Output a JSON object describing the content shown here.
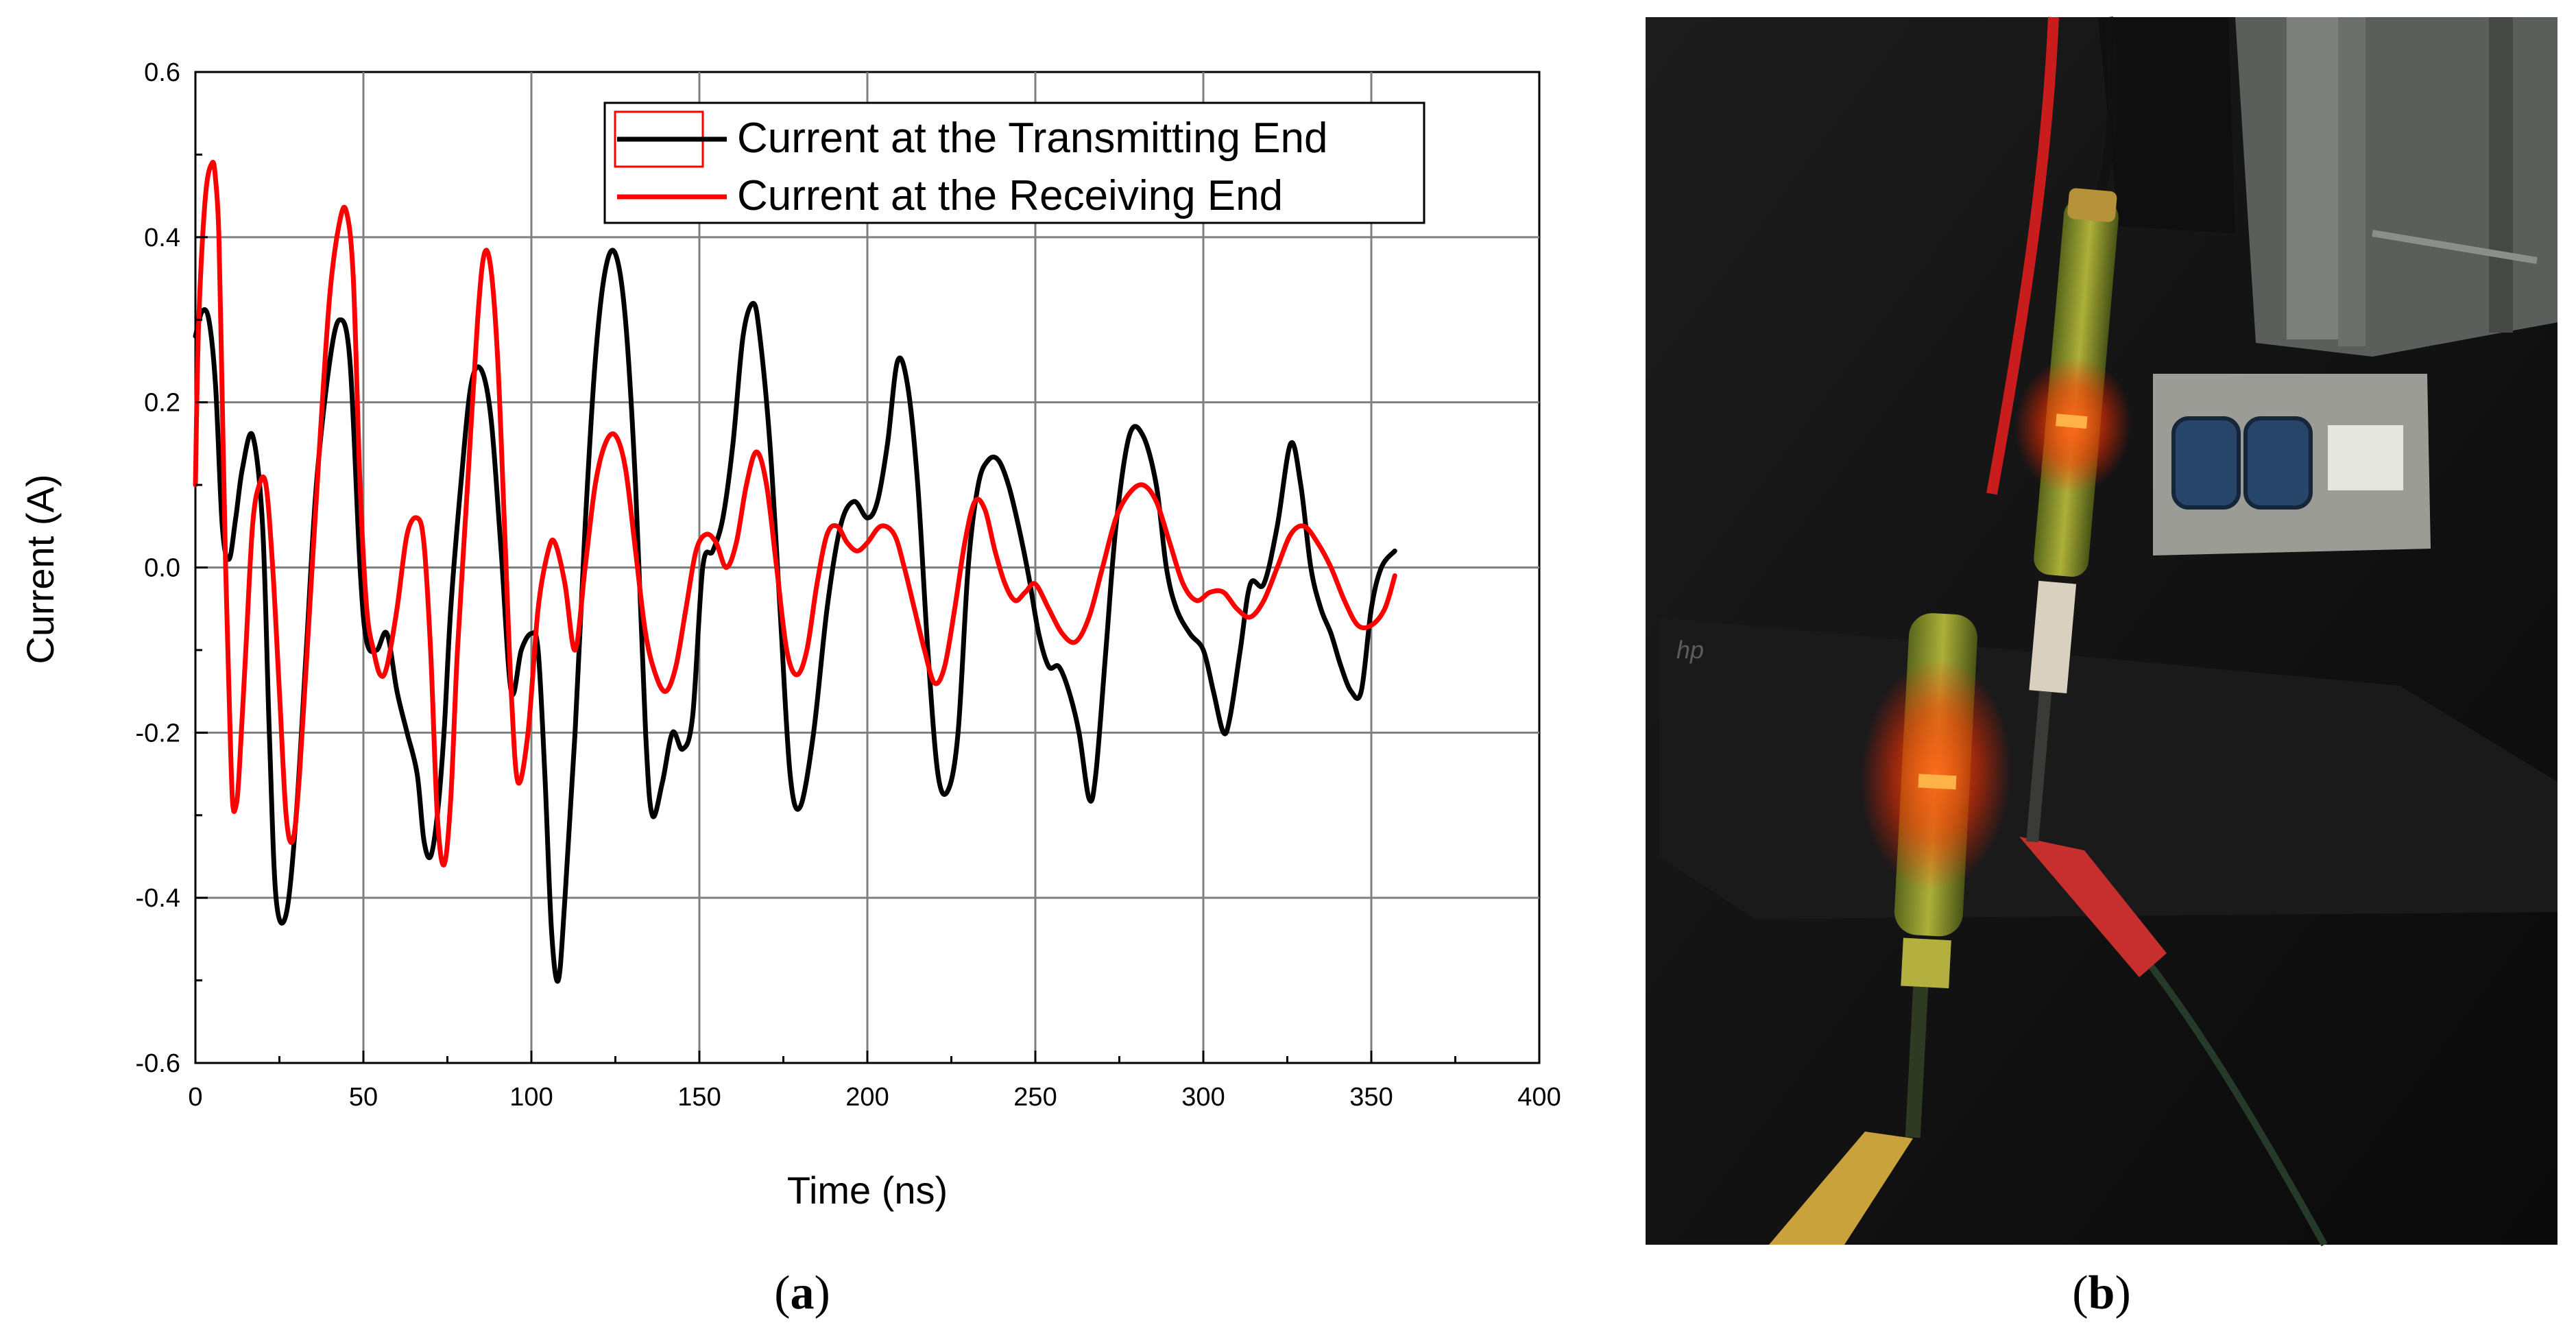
{
  "chart_data": {
    "type": "line",
    "title": "",
    "xlabel": "Time (ns)",
    "ylabel": "Current (A)",
    "xlim": [
      0,
      400
    ],
    "ylim": [
      -0.6,
      0.6
    ],
    "xticks": [
      0,
      50,
      100,
      150,
      200,
      250,
      300,
      350,
      400
    ],
    "yticks": [
      -0.6,
      -0.4,
      -0.2,
      0.0,
      0.2,
      0.4,
      0.6
    ],
    "xtick_labels": [
      "0",
      "50",
      "100",
      "150",
      "200",
      "250",
      "300",
      "350",
      "400"
    ],
    "ytick_labels": [
      "-0.6",
      "-0.4",
      "-0.2",
      "0.0",
      "0.2",
      "0.4",
      "0.6"
    ],
    "grid": true,
    "legend_position": "top-right",
    "series": [
      {
        "name": "Current at the Transmitting End",
        "color": "#000000",
        "x": [
          0,
          2,
          4,
          6,
          8,
          10,
          12,
          14,
          17,
          20,
          22,
          24,
          27,
          30,
          33,
          36,
          40,
          43,
          46,
          49,
          51,
          54,
          57,
          60,
          63,
          66,
          68,
          70,
          72,
          74,
          76,
          79,
          82,
          85,
          88,
          91,
          94,
          97,
          100,
          102,
          104,
          106,
          108,
          110,
          113,
          116,
          119,
          122,
          125,
          128,
          131,
          134,
          136,
          139,
          142,
          145,
          148,
          151,
          154,
          157,
          160,
          163,
          166,
          168,
          171,
          174,
          177,
          180,
          184,
          188,
          192,
          196,
          200,
          203,
          206,
          209,
          212,
          215,
          218,
          221,
          224,
          227,
          230,
          233,
          236,
          239,
          242,
          245,
          248,
          251,
          254,
          257,
          260,
          263,
          266,
          268,
          271,
          274,
          278,
          282,
          286,
          289,
          292,
          296,
          300,
          303,
          306,
          308,
          311,
          314,
          318,
          322,
          326,
          329,
          332,
          335,
          338,
          341,
          344,
          347,
          350,
          353,
          357
        ],
        "values": [
          0.28,
          0.31,
          0.3,
          0.22,
          0.05,
          0.01,
          0.06,
          0.12,
          0.16,
          0.05,
          -0.2,
          -0.4,
          -0.42,
          -0.3,
          -0.1,
          0.1,
          0.25,
          0.3,
          0.25,
          0.0,
          -0.09,
          -0.1,
          -0.08,
          -0.15,
          -0.2,
          -0.25,
          -0.33,
          -0.35,
          -0.3,
          -0.2,
          -0.05,
          0.1,
          0.22,
          0.24,
          0.18,
          0.02,
          -0.15,
          -0.1,
          -0.08,
          -0.1,
          -0.25,
          -0.44,
          -0.5,
          -0.4,
          -0.2,
          0.05,
          0.25,
          0.36,
          0.38,
          0.3,
          0.1,
          -0.2,
          -0.3,
          -0.26,
          -0.2,
          -0.22,
          -0.18,
          0.0,
          0.02,
          0.06,
          0.15,
          0.28,
          0.32,
          0.28,
          0.15,
          -0.05,
          -0.25,
          -0.29,
          -0.2,
          -0.05,
          0.05,
          0.08,
          0.06,
          0.08,
          0.15,
          0.25,
          0.22,
          0.1,
          -0.1,
          -0.25,
          -0.27,
          -0.2,
          0.0,
          0.1,
          0.13,
          0.13,
          0.1,
          0.05,
          -0.01,
          -0.08,
          -0.12,
          -0.12,
          -0.15,
          -0.2,
          -0.28,
          -0.25,
          -0.1,
          0.05,
          0.16,
          0.16,
          0.1,
          0.0,
          -0.05,
          -0.08,
          -0.1,
          -0.15,
          -0.2,
          -0.18,
          -0.1,
          -0.02,
          -0.02,
          0.05,
          0.15,
          0.1,
          0.0,
          -0.05,
          -0.08,
          -0.12,
          -0.15,
          -0.15,
          -0.05,
          0.0,
          0.02
        ]
      },
      {
        "name": "Current at the Receiving End",
        "color": "#ff0000",
        "x": [
          0,
          1,
          3,
          5,
          6,
          7,
          8,
          9,
          10,
          11,
          12,
          13,
          15,
          17,
          19,
          21,
          23,
          25,
          27,
          29,
          31,
          34,
          37,
          40,
          43,
          45,
          47,
          49,
          51,
          53,
          55,
          57,
          60,
          63,
          66,
          68,
          70,
          72,
          74,
          76,
          78,
          81,
          84,
          86,
          88,
          90,
          92,
          94,
          96,
          99,
          102,
          105,
          107,
          110,
          113,
          116,
          119,
          122,
          125,
          128,
          131,
          134,
          137,
          140,
          143,
          146,
          149,
          152,
          155,
          158,
          161,
          164,
          167,
          170,
          173,
          176,
          179,
          182,
          185,
          188,
          191,
          194,
          197,
          200,
          204,
          208,
          211,
          214,
          217,
          220,
          223,
          226,
          229,
          232,
          235,
          238,
          241,
          244,
          247,
          250,
          254,
          258,
          262,
          266,
          270,
          274,
          278,
          282,
          286,
          290,
          294,
          298,
          302,
          306,
          310,
          314,
          318,
          322,
          326,
          330,
          334,
          338,
          342,
          346,
          350,
          354,
          357
        ],
        "values": [
          0.1,
          0.3,
          0.45,
          0.49,
          0.47,
          0.4,
          0.2,
          0.0,
          -0.15,
          -0.28,
          -0.29,
          -0.25,
          -0.1,
          0.05,
          0.1,
          0.1,
          0.0,
          -0.15,
          -0.3,
          -0.33,
          -0.25,
          -0.05,
          0.15,
          0.33,
          0.42,
          0.43,
          0.35,
          0.1,
          -0.05,
          -0.1,
          -0.13,
          -0.12,
          -0.05,
          0.04,
          0.06,
          0.03,
          -0.1,
          -0.3,
          -0.36,
          -0.28,
          -0.1,
          0.1,
          0.3,
          0.38,
          0.36,
          0.25,
          0.05,
          -0.15,
          -0.26,
          -0.2,
          -0.05,
          0.02,
          0.03,
          -0.02,
          -0.1,
          0.0,
          0.1,
          0.15,
          0.16,
          0.12,
          0.02,
          -0.08,
          -0.13,
          -0.15,
          -0.12,
          -0.05,
          0.02,
          0.04,
          0.03,
          0.0,
          0.03,
          0.1,
          0.14,
          0.1,
          0.0,
          -0.1,
          -0.13,
          -0.1,
          -0.02,
          0.04,
          0.05,
          0.03,
          0.02,
          0.03,
          0.05,
          0.04,
          0.0,
          -0.05,
          -0.1,
          -0.14,
          -0.12,
          -0.05,
          0.03,
          0.08,
          0.07,
          0.02,
          -0.02,
          -0.04,
          -0.03,
          -0.02,
          -0.05,
          -0.08,
          -0.09,
          -0.06,
          0.0,
          0.06,
          0.09,
          0.1,
          0.08,
          0.03,
          -0.02,
          -0.04,
          -0.03,
          -0.03,
          -0.05,
          -0.06,
          -0.04,
          0.0,
          0.04,
          0.05,
          0.03,
          0.0,
          -0.04,
          -0.07,
          -0.07,
          -0.05,
          -0.01
        ]
      }
    ]
  },
  "panels": {
    "a_label": "a",
    "b_label": "b"
  },
  "photo": {
    "description": "",
    "logo_text": "hp"
  }
}
